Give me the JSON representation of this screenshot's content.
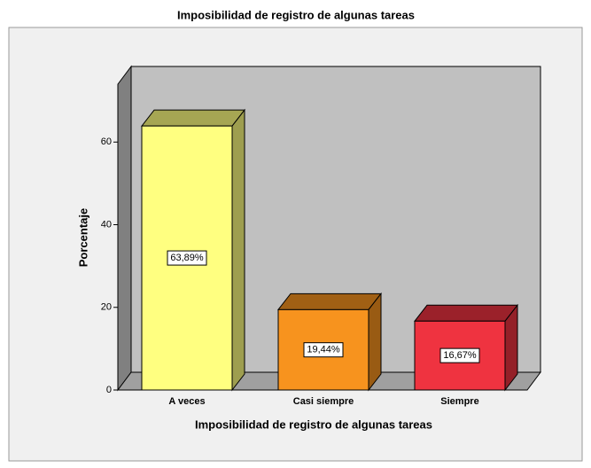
{
  "chart_data": {
    "type": "bar3d",
    "title": "Imposibilidad de registro de algunas tareas",
    "x_label": "Imposibilidad de registro de algunas tareas",
    "y_label": "Porcentaje",
    "categories": [
      "A veces",
      "Casi siempre",
      "Siempre"
    ],
    "values": [
      63.89,
      19.44,
      16.67
    ],
    "value_labels": [
      "63,89%",
      "19,44%",
      "16,67%"
    ],
    "colors": [
      "#ffff80",
      "#f7931e",
      "#ef3340"
    ],
    "ylim": [
      0,
      74
    ],
    "yticks": [
      0,
      20,
      40,
      60
    ]
  }
}
